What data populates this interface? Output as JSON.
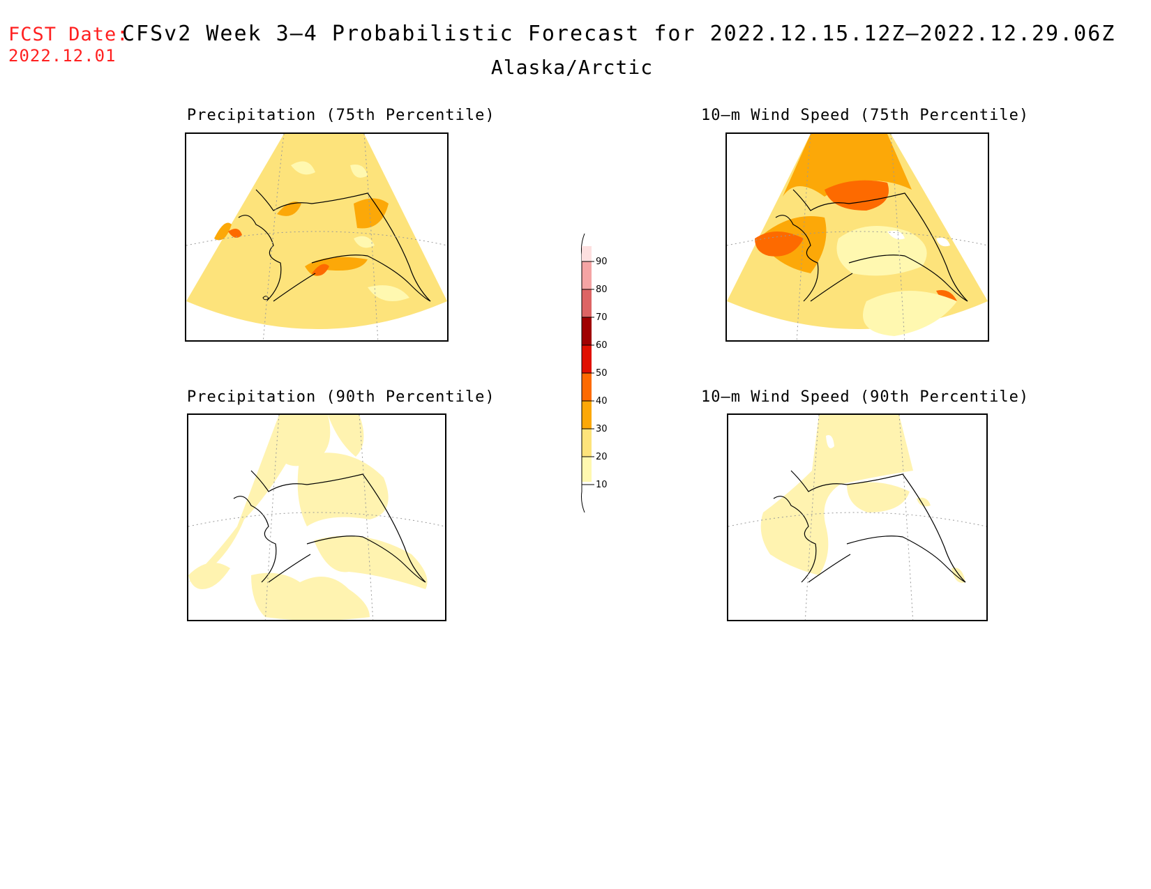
{
  "header": {
    "fcst_label": "FCST Date:",
    "fcst_date": "2022.12.01",
    "title": "CFSv2 Week 3–4 Probabilistic Forecast for 2022.12.15.12Z–2022.12.29.06Z",
    "region": "Alaska/Arctic"
  },
  "panels": [
    {
      "title": "Precipitation (75th Percentile)",
      "shading": "moderate"
    },
    {
      "title": "10–m Wind Speed (75th Percentile)",
      "shading": "high"
    },
    {
      "title": "Precipitation (90th Percentile)",
      "shading": "low"
    },
    {
      "title": "10–m Wind Speed (90th Percentile)",
      "shading": "lowest"
    }
  ],
  "colorbar": {
    "levels": [
      "90",
      "80",
      "70",
      "60",
      "50",
      "40",
      "30",
      "20",
      "10"
    ],
    "colors": {
      "above_90": "#fde0e0",
      "80_90": "#f4a4a4",
      "70_80": "#dd6464",
      "60_70": "#a00000",
      "50_60": "#e01000",
      "40_50": "#fd6a00",
      "30_40": "#fca808",
      "20_30": "#fde37b",
      "10_20": "#fff8b0"
    }
  }
}
